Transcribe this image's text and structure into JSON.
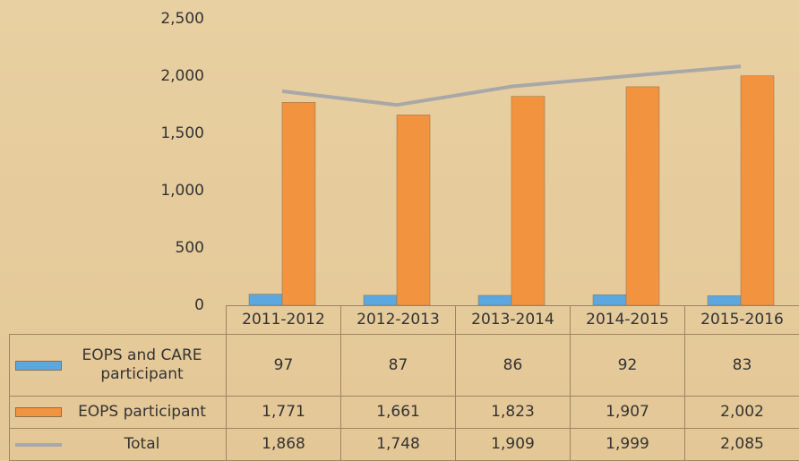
{
  "chart_data": {
    "type": "bar",
    "categories": [
      "2011-2012",
      "2012-2013",
      "2013-2014",
      "2014-2015",
      "2015-2016"
    ],
    "series": [
      {
        "name": "EOPS and CARE participant",
        "color": "#5ba8e0",
        "values": [
          97,
          87,
          86,
          92,
          83
        ]
      },
      {
        "name": "EOPS participant",
        "color": "#f29340",
        "values": [
          1771,
          1661,
          1823,
          1907,
          2002
        ],
        "value_labels": [
          "1,771",
          "1,661",
          "1,823",
          "1,907",
          "2,002"
        ]
      },
      {
        "name": "Total",
        "type": "line",
        "color": "#a8a8a8",
        "values": [
          1868,
          1748,
          1909,
          1999,
          2085
        ],
        "value_labels": [
          "1,868",
          "1,748",
          "1,909",
          "1,999",
          "2,085"
        ]
      }
    ],
    "ylim": [
      0,
      2500
    ],
    "yticks": [
      0,
      500,
      {
        "value": 1000,
        "label": "1,000"
      },
      {
        "value": 1500,
        "label": "1,500"
      },
      {
        "value": 2000,
        "label": "2,000"
      },
      {
        "value": 2500,
        "label": "2,500"
      }
    ],
    "grid": false,
    "data_table": true
  }
}
